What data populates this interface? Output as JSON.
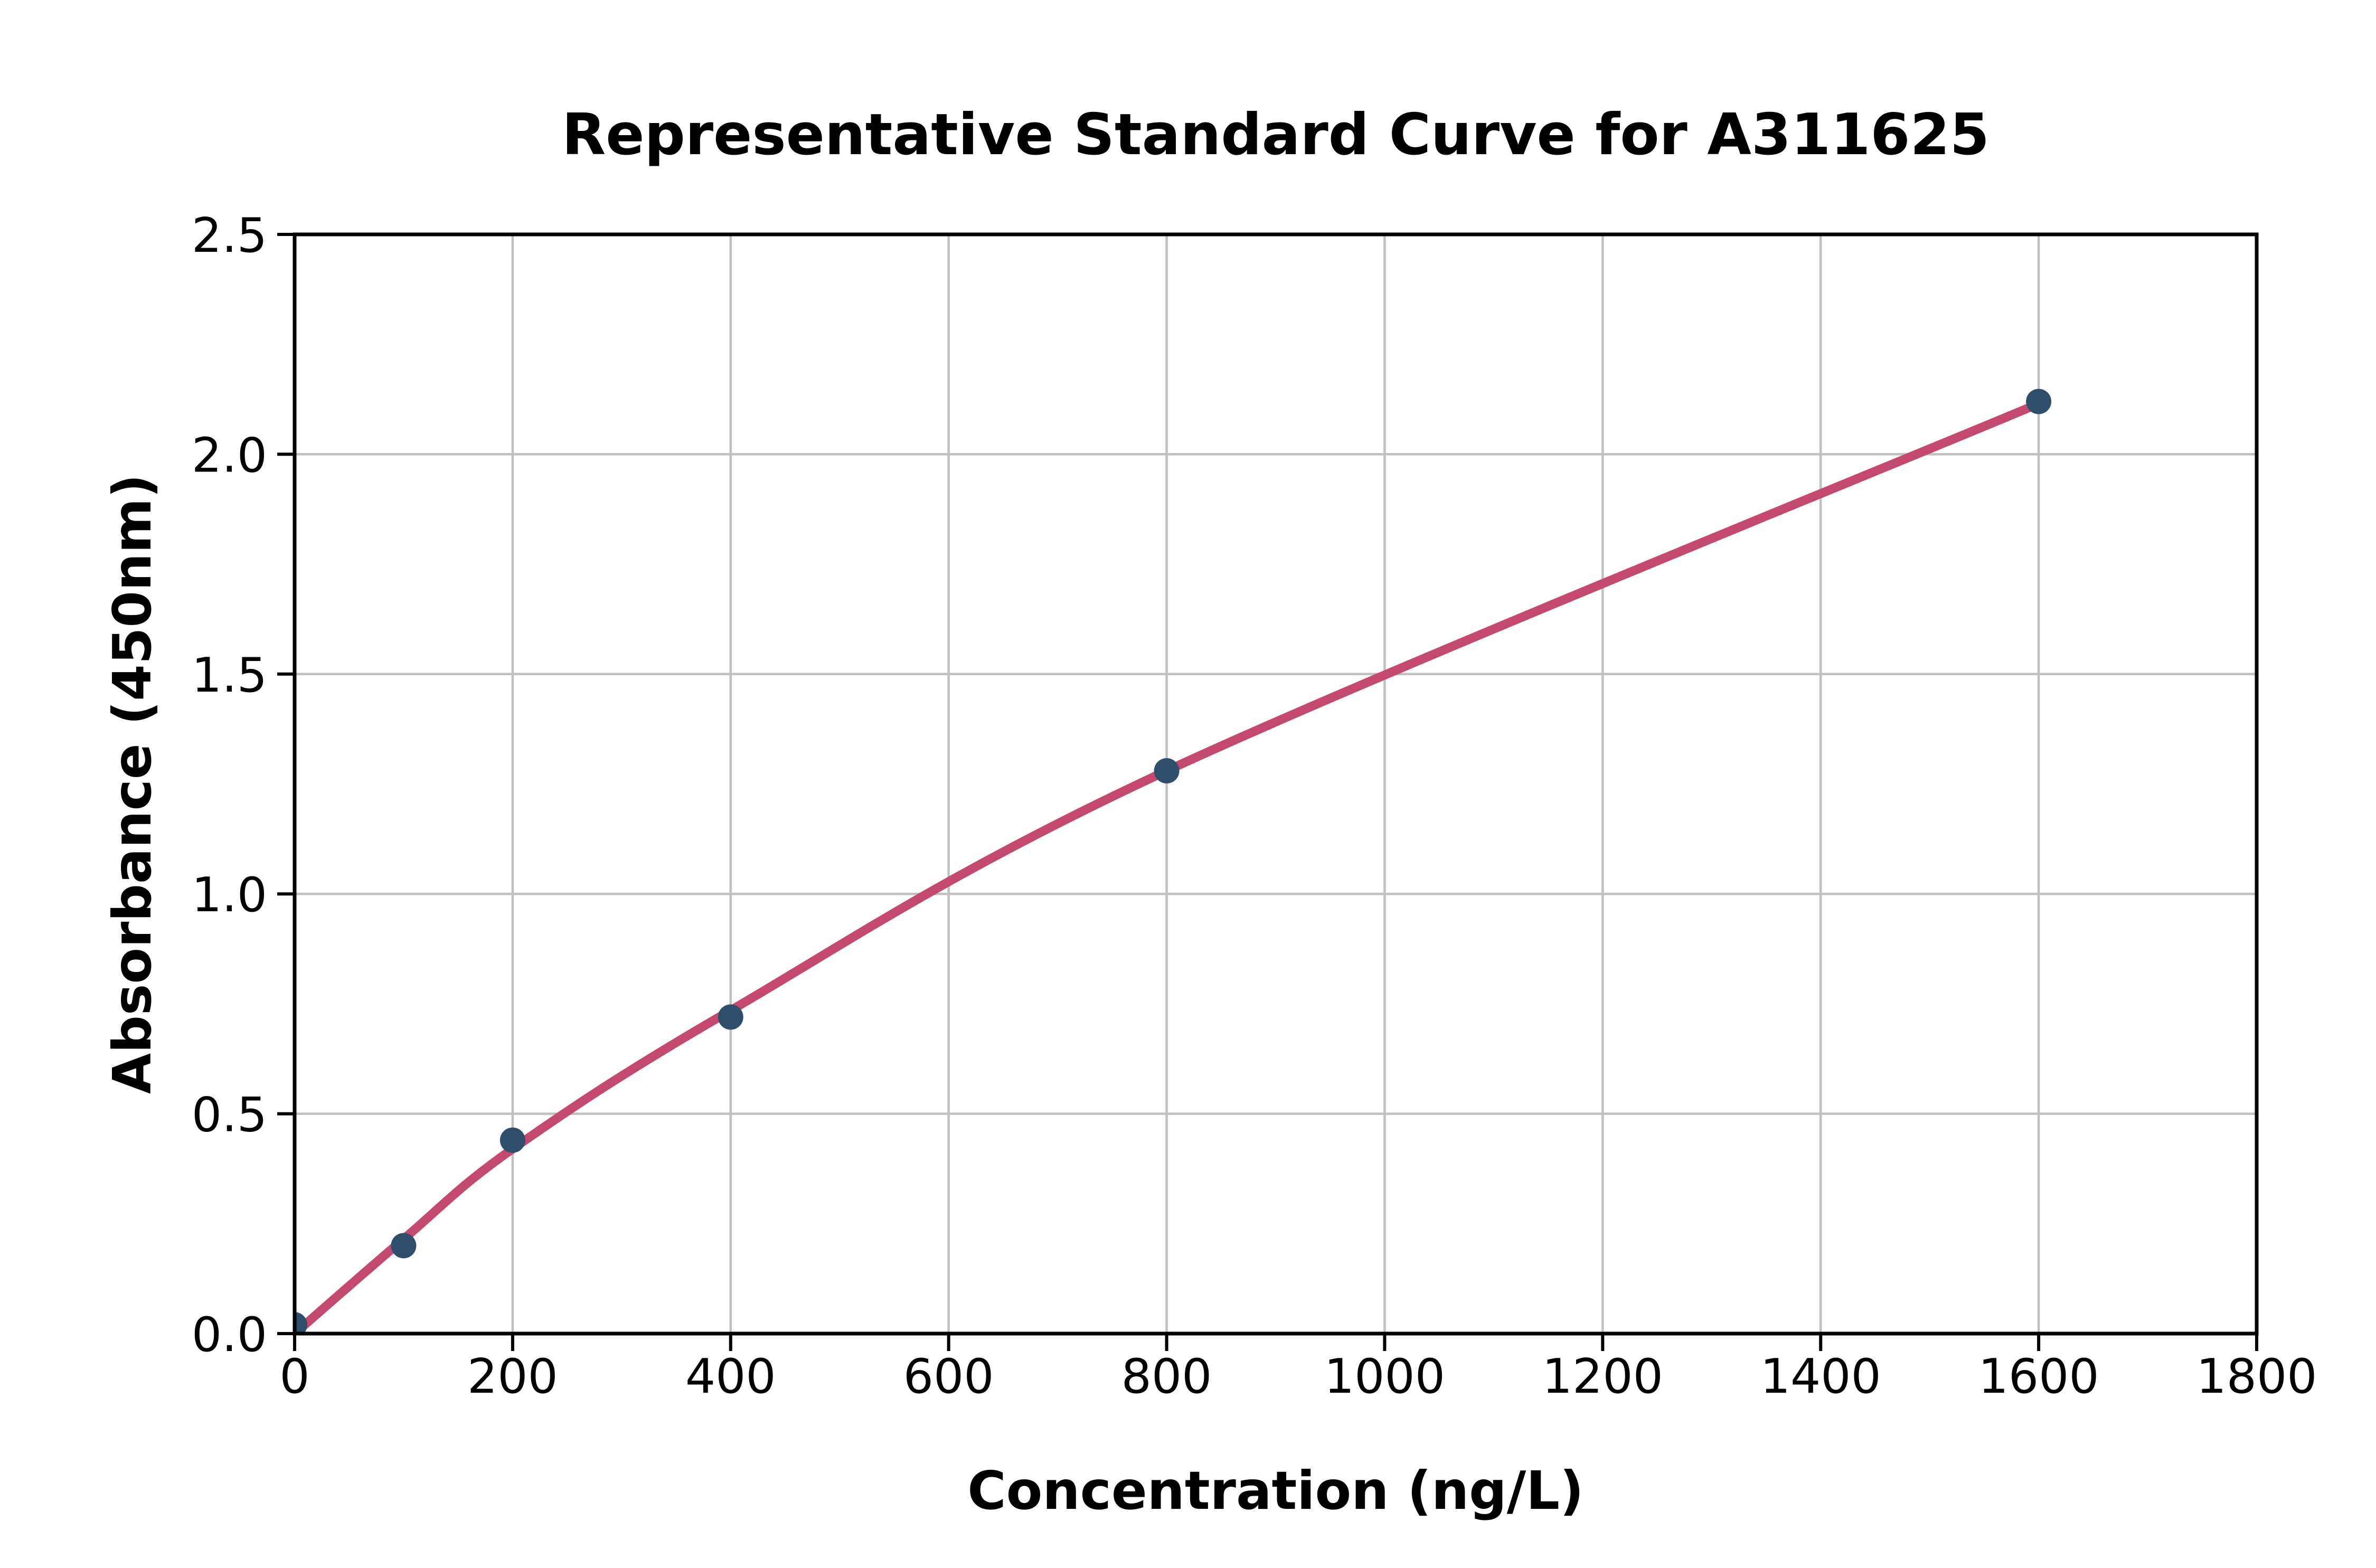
{
  "title": "Representative Standard Curve for A311625",
  "axes": {
    "x": {
      "label": "Concentration (ng/L)",
      "min": 0,
      "max": 1800,
      "tick_values": [
        0,
        200,
        400,
        600,
        800,
        1000,
        1200,
        1400,
        1600,
        1800
      ],
      "tick_labels": [
        "0",
        "200",
        "400",
        "600",
        "800",
        "1000",
        "1200",
        "1400",
        "1600",
        "1800"
      ]
    },
    "y": {
      "label": "Absorbance (450nm)",
      "min": 0,
      "max": 2.5,
      "tick_values": [
        0,
        0.5,
        1.0,
        1.5,
        2.0,
        2.5
      ],
      "tick_labels": [
        "0.0",
        "0.5",
        "1.0",
        "1.5",
        "2.0",
        "2.5"
      ]
    }
  },
  "colors": {
    "marker": "#2F4D6C",
    "curve": "#C4496E",
    "grid": "#C0C0C0",
    "frame": "#000000",
    "background": "#ffffff"
  },
  "chart_data": {
    "type": "scatter",
    "title": "Representative Standard Curve for A311625",
    "xlabel": "Concentration (ng/L)",
    "ylabel": "Absorbance (450nm)",
    "xlim": [
      0,
      1800
    ],
    "ylim": [
      0,
      2.5
    ],
    "grid": true,
    "legend": "none",
    "series": [
      {
        "name": "standard-points",
        "type": "scatter",
        "color": "#2F4D6C",
        "x": [
          0,
          100,
          200,
          400,
          800,
          1600
        ],
        "y": [
          0.02,
          0.2,
          0.44,
          0.72,
          1.28,
          2.12
        ]
      },
      {
        "name": "fitted-curve",
        "type": "line",
        "color": "#C4496E",
        "x": [
          0,
          100,
          200,
          400,
          800,
          1600
        ],
        "y": [
          0.0,
          0.215,
          0.42,
          0.735,
          1.28,
          2.115
        ]
      }
    ]
  }
}
